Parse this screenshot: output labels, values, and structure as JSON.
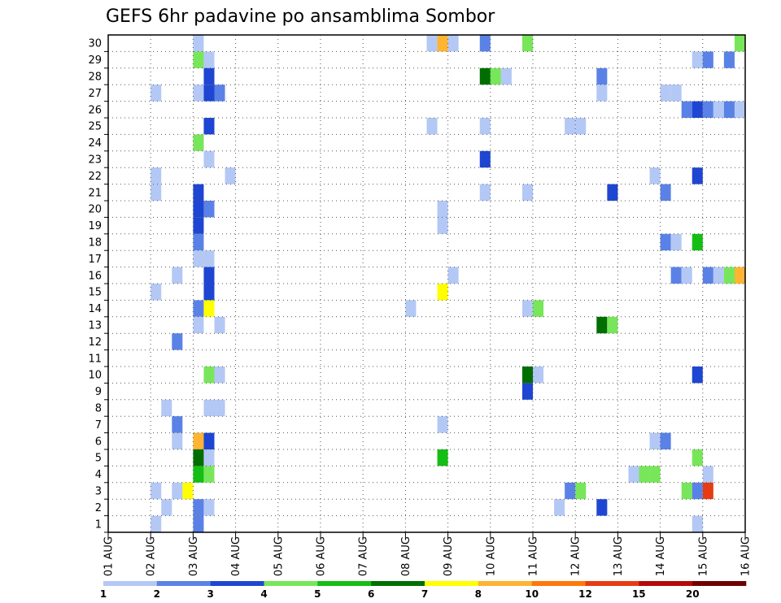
{
  "chart_data": {
    "type": "heatmap",
    "title": "GEFS 6hr padavine po ansamblima Sombor",
    "xlabel": "",
    "ylabel": "",
    "y_categories": [
      1,
      2,
      3,
      4,
      5,
      6,
      7,
      8,
      9,
      10,
      11,
      12,
      13,
      14,
      15,
      16,
      17,
      18,
      19,
      20,
      21,
      22,
      23,
      24,
      25,
      26,
      27,
      28,
      29,
      30
    ],
    "x_ticks": [
      "01 AUG",
      "02 AUG",
      "03 AUG",
      "04 AUG",
      "05 AUG",
      "06 AUG",
      "07 AUG",
      "08 AUG",
      "09 AUG",
      "10 AUG",
      "11 AUG",
      "12 AUG",
      "13 AUG",
      "14 AUG",
      "15 AUG",
      "16 AUG"
    ],
    "x_range_days": [
      0,
      15
    ],
    "grid": true,
    "color_scale": {
      "boundaries": [
        1,
        2,
        3,
        4,
        5,
        6,
        7,
        8,
        10,
        12,
        15,
        20
      ],
      "colors": [
        "#b4c8f5",
        "#5a82e6",
        "#1e46d2",
        "#78e65a",
        "#14be14",
        "#006e00",
        "#ffff00",
        "#ffb432",
        "#ff780a",
        "#e63c14",
        "#b40a0a",
        "#6e0000"
      ]
    },
    "cells": [
      {
        "member": 30,
        "start": "03 AUG 00",
        "values": [
          1
        ]
      },
      {
        "member": 30,
        "start": "08 AUG 12",
        "values": [
          1,
          8,
          1
        ]
      },
      {
        "member": 30,
        "start": "09 AUG 18",
        "values": [
          2
        ]
      },
      {
        "member": 30,
        "start": "10 AUG 18",
        "values": [
          4
        ]
      },
      {
        "member": 30,
        "start": "15 AUG 18",
        "values": [
          4
        ]
      },
      {
        "member": 29,
        "start": "03 AUG 00",
        "values": [
          4,
          1
        ]
      },
      {
        "member": 29,
        "start": "14 AUG 18",
        "values": [
          1,
          2
        ]
      },
      {
        "member": 29,
        "start": "15 AUG 12",
        "values": [
          2
        ]
      },
      {
        "member": 28,
        "start": "03 AUG 06",
        "values": [
          3
        ]
      },
      {
        "member": 28,
        "start": "09 AUG 18",
        "values": [
          6,
          4,
          1
        ]
      },
      {
        "member": 28,
        "start": "12 AUG 12",
        "values": [
          2
        ]
      },
      {
        "member": 27,
        "start": "02 AUG 00",
        "values": [
          1
        ]
      },
      {
        "member": 27,
        "start": "03 AUG 00",
        "values": [
          1,
          3,
          2
        ]
      },
      {
        "member": 27,
        "start": "12 AUG 12",
        "values": [
          1
        ]
      },
      {
        "member": 27,
        "start": "14 AUG 00",
        "values": [
          1,
          1
        ]
      },
      {
        "member": 26,
        "start": "14 AUG 18",
        "values": [
          1,
          2
        ]
      },
      {
        "member": 26,
        "start": "14 AUG 12",
        "values": [
          2,
          3
        ]
      },
      {
        "member": 26,
        "start": "15 AUG 06",
        "values": [
          1,
          2,
          1
        ]
      },
      {
        "member": 25,
        "start": "03 AUG 06",
        "values": [
          3
        ]
      },
      {
        "member": 25,
        "start": "08 AUG 12",
        "values": [
          1
        ]
      },
      {
        "member": 25,
        "start": "09 AUG 18",
        "values": [
          1
        ]
      },
      {
        "member": 25,
        "start": "11 AUG 18",
        "values": [
          1,
          1
        ]
      },
      {
        "member": 24,
        "start": "03 AUG 00",
        "values": [
          4
        ]
      },
      {
        "member": 23,
        "start": "03 AUG 06",
        "values": [
          1
        ]
      },
      {
        "member": 23,
        "start": "09 AUG 18",
        "values": [
          3
        ]
      },
      {
        "member": 22,
        "start": "02 AUG 00",
        "values": [
          1
        ]
      },
      {
        "member": 22,
        "start": "03 AUG 18",
        "values": [
          1
        ]
      },
      {
        "member": 22,
        "start": "13 AUG 18",
        "values": [
          1
        ]
      },
      {
        "member": 22,
        "start": "14 AUG 18",
        "values": [
          3
        ]
      },
      {
        "member": 21,
        "start": "02 AUG 00",
        "values": [
          1
        ]
      },
      {
        "member": 21,
        "start": "03 AUG 00",
        "values": [
          3
        ]
      },
      {
        "member": 21,
        "start": "09 AUG 18",
        "values": [
          1
        ]
      },
      {
        "member": 21,
        "start": "10 AUG 18",
        "values": [
          1
        ]
      },
      {
        "member": 21,
        "start": "12 AUG 18",
        "values": [
          3
        ]
      },
      {
        "member": 21,
        "start": "14 AUG 00",
        "values": [
          2
        ]
      },
      {
        "member": 20,
        "start": "03 AUG 00",
        "values": [
          3,
          2
        ]
      },
      {
        "member": 20,
        "start": "08 AUG 18",
        "values": [
          1
        ]
      },
      {
        "member": 19,
        "start": "03 AUG 00",
        "values": [
          3
        ]
      },
      {
        "member": 19,
        "start": "08 AUG 18",
        "values": [
          1
        ]
      },
      {
        "member": 18,
        "start": "03 AUG 00",
        "values": [
          2
        ]
      },
      {
        "member": 18,
        "start": "14 AUG 00",
        "values": [
          2,
          1
        ]
      },
      {
        "member": 18,
        "start": "14 AUG 18",
        "values": [
          5
        ]
      },
      {
        "member": 17,
        "start": "03 AUG 00",
        "values": [
          1,
          1
        ]
      },
      {
        "member": 16,
        "start": "02 AUG 12",
        "values": [
          1
        ]
      },
      {
        "member": 16,
        "start": "03 AUG 06",
        "values": [
          3
        ]
      },
      {
        "member": 16,
        "start": "09 AUG 00",
        "values": [
          1
        ]
      },
      {
        "member": 16,
        "start": "14 AUG 06",
        "values": [
          2,
          1
        ]
      },
      {
        "member": 16,
        "start": "15 AUG 00",
        "values": [
          2,
          1,
          4,
          9
        ]
      },
      {
        "member": 15,
        "start": "02 AUG 00",
        "values": [
          1
        ]
      },
      {
        "member": 15,
        "start": "03 AUG 06",
        "values": [
          3
        ]
      },
      {
        "member": 15,
        "start": "08 AUG 18",
        "values": [
          7
        ]
      },
      {
        "member": 14,
        "start": "03 AUG 00",
        "values": [
          2,
          7
        ]
      },
      {
        "member": 14,
        "start": "08 AUG 00",
        "values": [
          1
        ]
      },
      {
        "member": 14,
        "start": "10 AUG 18",
        "values": [
          1,
          4
        ]
      },
      {
        "member": 13,
        "start": "03 AUG 00",
        "values": [
          1
        ]
      },
      {
        "member": 13,
        "start": "03 AUG 12",
        "values": [
          1
        ]
      },
      {
        "member": 13,
        "start": "12 AUG 12",
        "values": [
          6,
          4
        ]
      },
      {
        "member": 12,
        "start": "02 AUG 12",
        "values": [
          2
        ]
      },
      {
        "member": 10,
        "start": "03 AUG 06",
        "values": [
          4,
          1
        ]
      },
      {
        "member": 10,
        "start": "10 AUG 18",
        "values": [
          6,
          1
        ]
      },
      {
        "member": 10,
        "start": "14 AUG 18",
        "values": [
          3
        ]
      },
      {
        "member": 9,
        "start": "10 AUG 18",
        "values": [
          3
        ]
      },
      {
        "member": 8,
        "start": "02 AUG 06",
        "values": [
          1
        ]
      },
      {
        "member": 8,
        "start": "03 AUG 06",
        "values": [
          1,
          1
        ]
      },
      {
        "member": 7,
        "start": "02 AUG 12",
        "values": [
          2
        ]
      },
      {
        "member": 7,
        "start": "08 AUG 18",
        "values": [
          1
        ]
      },
      {
        "member": 6,
        "start": "02 AUG 12",
        "values": [
          1
        ]
      },
      {
        "member": 6,
        "start": "03 AUG 00",
        "values": [
          8,
          3
        ]
      },
      {
        "member": 6,
        "start": "13 AUG 18",
        "values": [
          1,
          2
        ]
      },
      {
        "member": 5,
        "start": "03 AUG 00",
        "values": [
          6,
          1
        ]
      },
      {
        "member": 5,
        "start": "08 AUG 18",
        "values": [
          5
        ]
      },
      {
        "member": 5,
        "start": "14 AUG 18",
        "values": [
          4
        ]
      },
      {
        "member": 4,
        "start": "03 AUG 00",
        "values": [
          5,
          4
        ]
      },
      {
        "member": 4,
        "start": "13 AUG 06",
        "values": [
          1,
          4,
          4
        ]
      },
      {
        "member": 4,
        "start": "15 AUG 00",
        "values": [
          1
        ]
      },
      {
        "member": 3,
        "start": "02 AUG 00",
        "values": [
          1
        ]
      },
      {
        "member": 3,
        "start": "02 AUG 12",
        "values": [
          1,
          7
        ]
      },
      {
        "member": 3,
        "start": "11 AUG 18",
        "values": [
          2,
          4
        ]
      },
      {
        "member": 3,
        "start": "14 AUG 12",
        "values": [
          4,
          2,
          13
        ]
      },
      {
        "member": 2,
        "start": "02 AUG 06",
        "values": [
          1
        ]
      },
      {
        "member": 2,
        "start": "03 AUG 00",
        "values": [
          2,
          1
        ]
      },
      {
        "member": 2,
        "start": "11 AUG 12",
        "values": [
          1
        ]
      },
      {
        "member": 2,
        "start": "12 AUG 12",
        "values": [
          3
        ]
      },
      {
        "member": 1,
        "start": "02 AUG 00",
        "values": [
          1
        ]
      },
      {
        "member": 1,
        "start": "03 AUG 00",
        "values": [
          2
        ]
      },
      {
        "member": 1,
        "start": "14 AUG 18",
        "values": [
          1
        ]
      }
    ]
  }
}
